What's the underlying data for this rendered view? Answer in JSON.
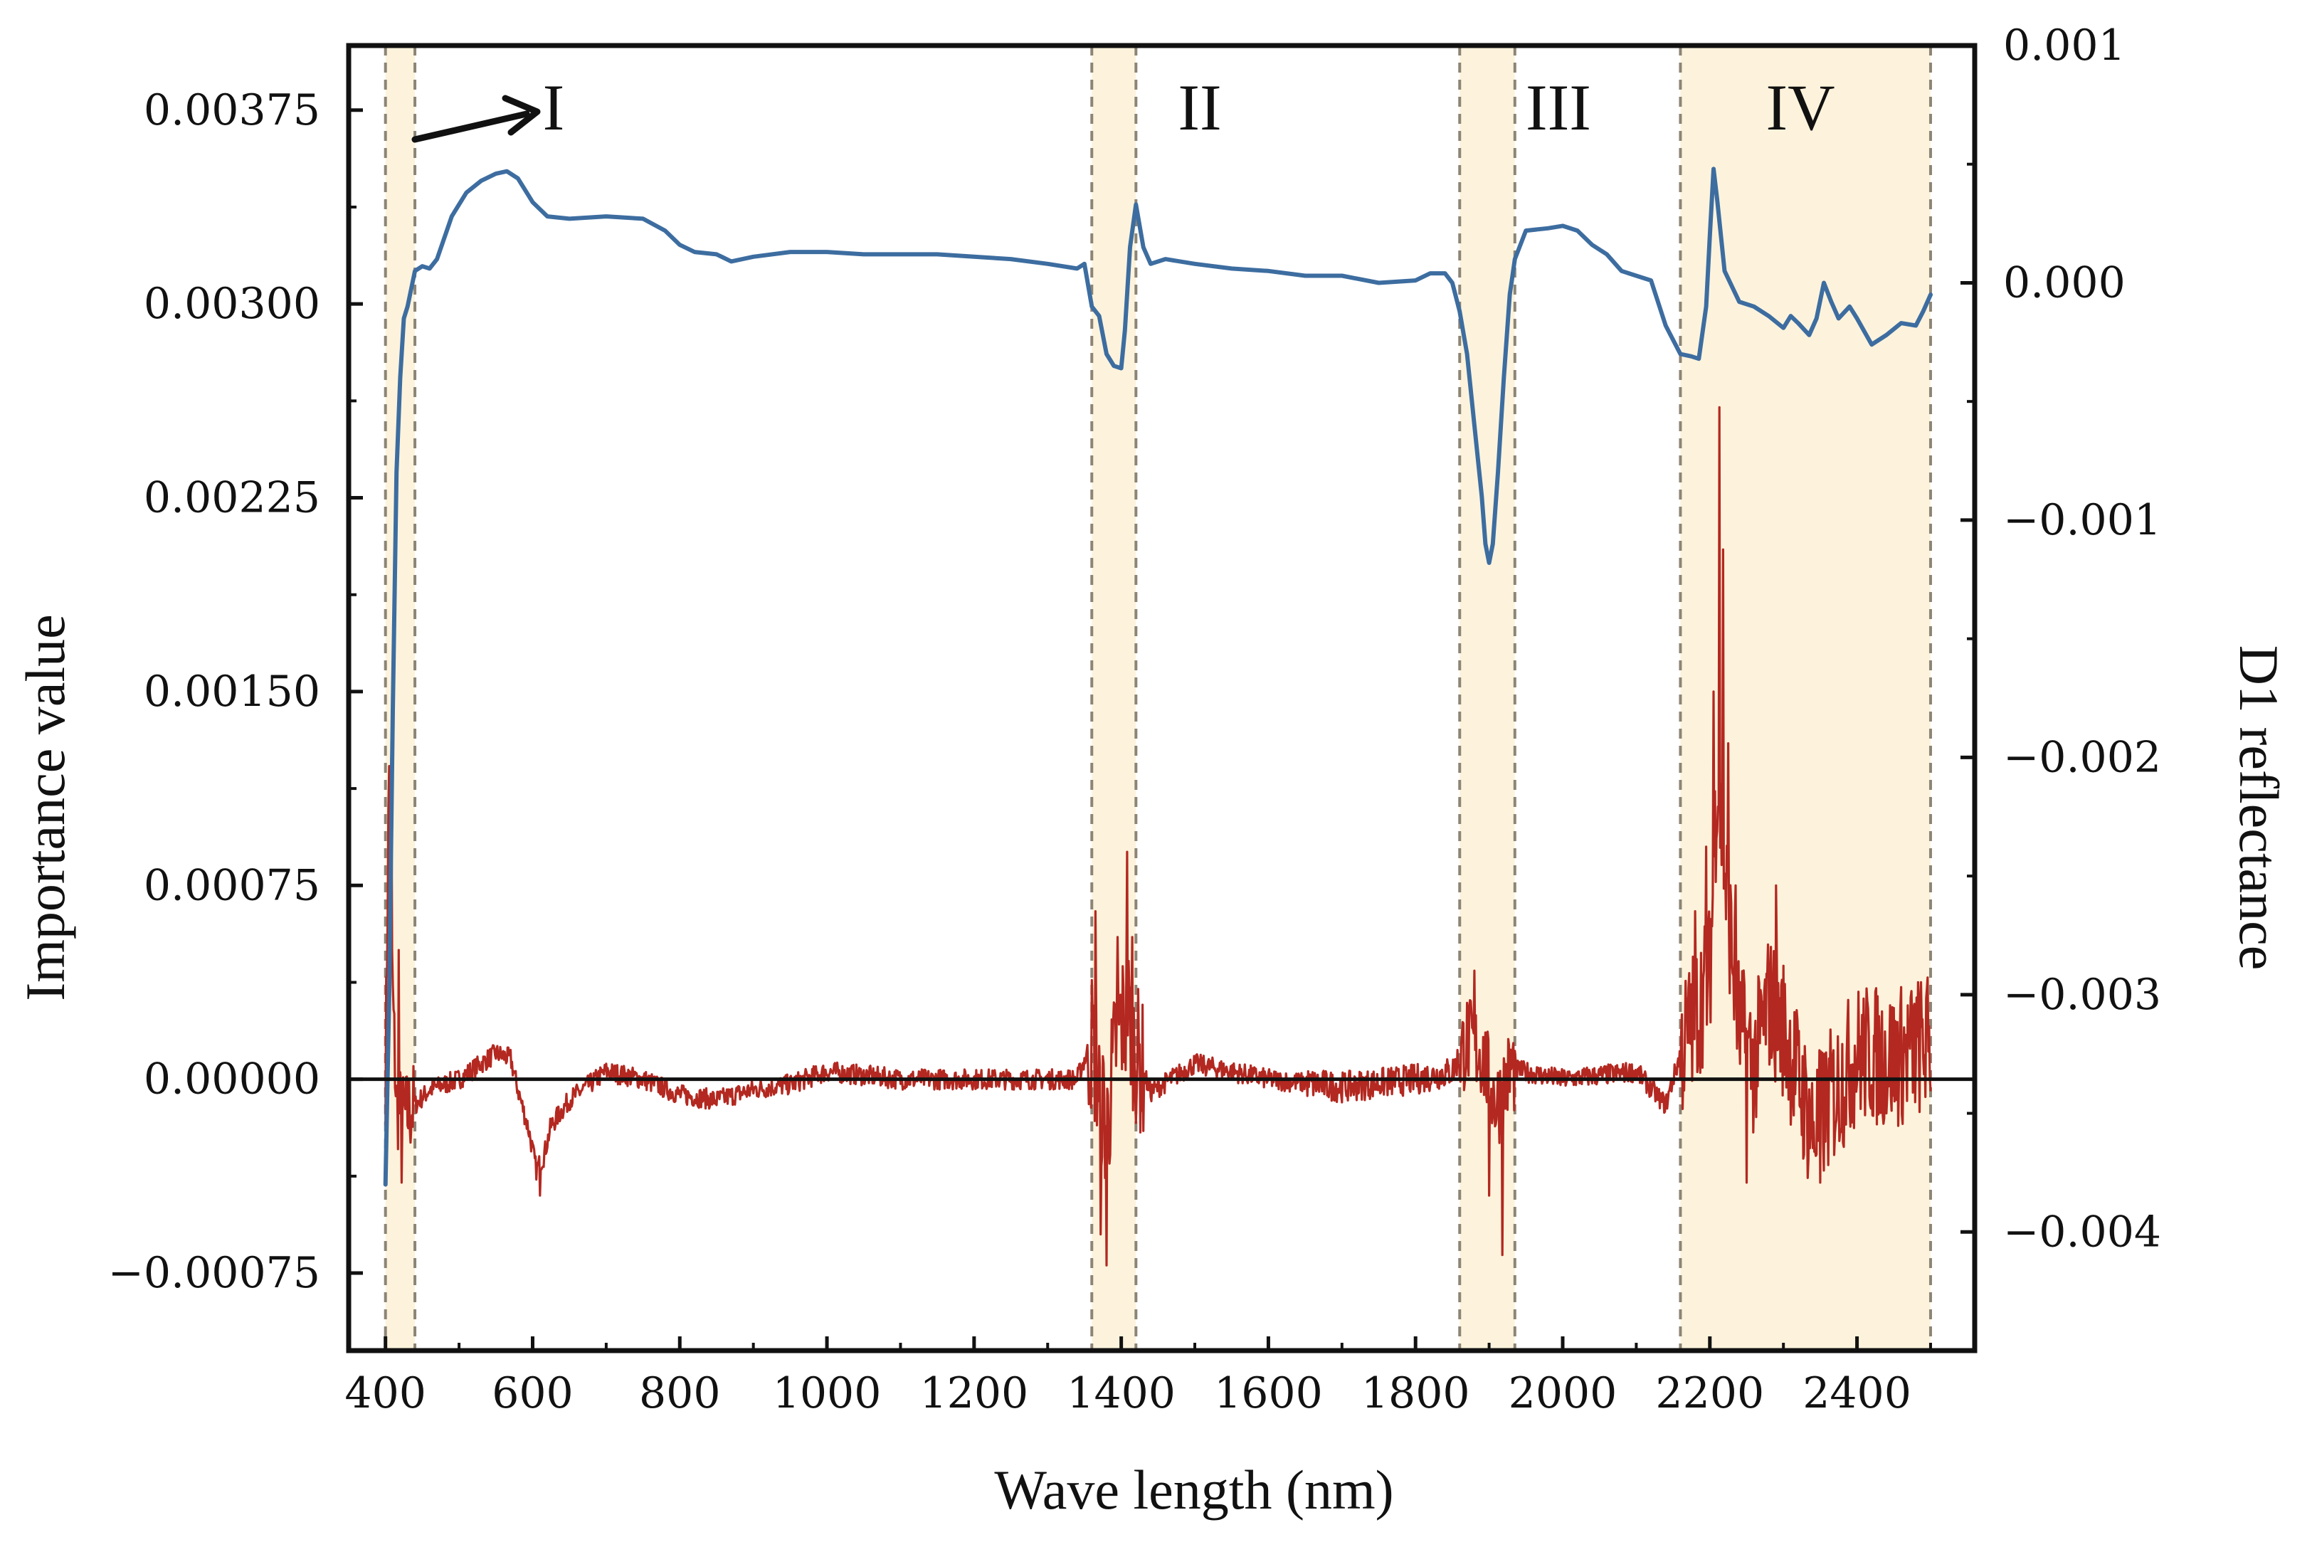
{
  "chart_data": {
    "type": "line",
    "title": "",
    "xlabel": "Wave length (nm)",
    "ylabel_left": "Importance value",
    "ylabel_right": "D1 reflectance",
    "xlim": [
      350,
      2560
    ],
    "ylim_left": [
      -0.00105,
      0.004
    ],
    "ylim_right": [
      -0.0045,
      0.001
    ],
    "x_ticks": [
      400,
      600,
      800,
      1000,
      1200,
      1400,
      1600,
      1800,
      2000,
      2200,
      2400
    ],
    "y_left_ticks": [
      -0.00075,
      0.0,
      0.00075,
      0.0015,
      0.00225,
      0.003,
      0.00375
    ],
    "y_left_tick_labels": [
      "−0.00075",
      "0.00000",
      "0.00075",
      "0.00150",
      "0.00225",
      "0.00300",
      "0.00375"
    ],
    "y_right_ticks": [
      0.001,
      0.0,
      -0.001,
      -0.002,
      -0.003,
      -0.004
    ],
    "y_right_tick_labels": [
      "0.001",
      "0.000",
      "−0.001",
      "−0.002",
      "−0.003",
      "−0.004"
    ],
    "regions": [
      {
        "label": "I",
        "start": 400,
        "end": 440
      },
      {
        "label": "II",
        "start": 1360,
        "end": 1420
      },
      {
        "label": "III",
        "start": 1860,
        "end": 1935
      },
      {
        "label": "IV",
        "start": 2160,
        "end": 2500
      }
    ],
    "series": [
      {
        "name": "D1 reflectance",
        "axis": "right",
        "color": "#3d6da0",
        "points": [
          [
            400,
            -0.0038
          ],
          [
            405,
            -0.003
          ],
          [
            410,
            -0.0018
          ],
          [
            415,
            -0.0008
          ],
          [
            420,
            -0.0004
          ],
          [
            425,
            -0.00015
          ],
          [
            430,
            -0.0001
          ],
          [
            440,
            5e-05
          ],
          [
            450,
            7e-05
          ],
          [
            460,
            6e-05
          ],
          [
            470,
            0.0001
          ],
          [
            490,
            0.00028
          ],
          [
            510,
            0.00038
          ],
          [
            530,
            0.00043
          ],
          [
            550,
            0.00046
          ],
          [
            565,
            0.00047
          ],
          [
            580,
            0.00044
          ],
          [
            600,
            0.00034
          ],
          [
            620,
            0.00028
          ],
          [
            650,
            0.00027
          ],
          [
            700,
            0.00028
          ],
          [
            750,
            0.00027
          ],
          [
            780,
            0.00022
          ],
          [
            800,
            0.00016
          ],
          [
            820,
            0.00013
          ],
          [
            850,
            0.00012
          ],
          [
            870,
            9e-05
          ],
          [
            900,
            0.00011
          ],
          [
            950,
            0.00013
          ],
          [
            1000,
            0.00013
          ],
          [
            1050,
            0.00012
          ],
          [
            1100,
            0.00012
          ],
          [
            1150,
            0.00012
          ],
          [
            1200,
            0.00011
          ],
          [
            1250,
            0.0001
          ],
          [
            1300,
            8e-05
          ],
          [
            1340,
            6e-05
          ],
          [
            1350,
            8e-05
          ],
          [
            1360,
            -0.0001
          ],
          [
            1370,
            -0.00014
          ],
          [
            1380,
            -0.0003
          ],
          [
            1390,
            -0.00035
          ],
          [
            1400,
            -0.00036
          ],
          [
            1405,
            -0.0002
          ],
          [
            1412,
            0.00015
          ],
          [
            1420,
            0.00033
          ],
          [
            1430,
            0.00015
          ],
          [
            1440,
            8e-05
          ],
          [
            1460,
            0.0001
          ],
          [
            1500,
            8e-05
          ],
          [
            1550,
            6e-05
          ],
          [
            1600,
            5e-05
          ],
          [
            1650,
            3e-05
          ],
          [
            1700,
            3e-05
          ],
          [
            1750,
            0.0
          ],
          [
            1800,
            1e-05
          ],
          [
            1820,
            4e-05
          ],
          [
            1840,
            4e-05
          ],
          [
            1850,
            0.0
          ],
          [
            1860,
            -0.00012
          ],
          [
            1870,
            -0.0003
          ],
          [
            1880,
            -0.0006
          ],
          [
            1890,
            -0.0009
          ],
          [
            1895,
            -0.0011
          ],
          [
            1900,
            -0.00118
          ],
          [
            1905,
            -0.0011
          ],
          [
            1912,
            -0.0008
          ],
          [
            1920,
            -0.0004
          ],
          [
            1928,
            -5e-05
          ],
          [
            1935,
            0.0001
          ],
          [
            1950,
            0.00022
          ],
          [
            1980,
            0.00023
          ],
          [
            2000,
            0.00024
          ],
          [
            2020,
            0.00022
          ],
          [
            2040,
            0.00016
          ],
          [
            2060,
            0.00012
          ],
          [
            2080,
            5e-05
          ],
          [
            2100,
            3e-05
          ],
          [
            2120,
            1e-05
          ],
          [
            2140,
            -0.00018
          ],
          [
            2160,
            -0.0003
          ],
          [
            2175,
            -0.00031
          ],
          [
            2185,
            -0.00032
          ],
          [
            2195,
            -0.0001
          ],
          [
            2200,
            0.0002
          ],
          [
            2205,
            0.00048
          ],
          [
            2210,
            0.00035
          ],
          [
            2220,
            5e-05
          ],
          [
            2240,
            -8e-05
          ],
          [
            2260,
            -0.0001
          ],
          [
            2280,
            -0.00014
          ],
          [
            2300,
            -0.00019
          ],
          [
            2310,
            -0.00014
          ],
          [
            2320,
            -0.00017
          ],
          [
            2335,
            -0.00022
          ],
          [
            2345,
            -0.00015
          ],
          [
            2355,
            0.0
          ],
          [
            2365,
            -8e-05
          ],
          [
            2375,
            -0.00015
          ],
          [
            2390,
            -0.0001
          ],
          [
            2400,
            -0.00015
          ],
          [
            2420,
            -0.00026
          ],
          [
            2440,
            -0.00022
          ],
          [
            2460,
            -0.00017
          ],
          [
            2480,
            -0.00018
          ],
          [
            2490,
            -0.00012
          ],
          [
            2500,
            -5e-05
          ]
        ]
      },
      {
        "name": "Importance value",
        "axis": "left",
        "color": "#b32820",
        "anchors": [
          [
            400,
            0.0
          ],
          [
            405,
            0.0012
          ],
          [
            410,
            0.0003
          ],
          [
            415,
            -0.0001
          ],
          [
            425,
            -0.00015
          ],
          [
            440,
            -0.0001
          ],
          [
            460,
            -4e-05
          ],
          [
            500,
            -0.0
          ],
          [
            530,
            6e-05
          ],
          [
            550,
            0.0001
          ],
          [
            570,
            8e-05
          ],
          [
            580,
            -4e-05
          ],
          [
            595,
            -0.0002
          ],
          [
            605,
            -0.00035
          ],
          [
            615,
            -0.0003
          ],
          [
            625,
            -0.00018
          ],
          [
            650,
            -8e-05
          ],
          [
            700,
            3e-05
          ],
          [
            750,
            0.0
          ],
          [
            800,
            -6e-05
          ],
          [
            850,
            -8e-05
          ],
          [
            900,
            -4e-05
          ],
          [
            950,
            -2e-05
          ],
          [
            1000,
            3e-05
          ],
          [
            1100,
            0.0
          ],
          [
            1200,
            0.0
          ],
          [
            1300,
            0.0
          ],
          [
            1340,
            0.0
          ],
          [
            1360,
            0.00015
          ],
          [
            1380,
            -0.0002
          ],
          [
            1395,
            0.0002
          ],
          [
            1410,
            0.00025
          ],
          [
            1420,
            0.0001
          ],
          [
            1440,
            -5e-05
          ],
          [
            1500,
            6e-05
          ],
          [
            1600,
            0.0
          ],
          [
            1700,
            -3e-05
          ],
          [
            1800,
            0.0
          ],
          [
            1850,
            3e-05
          ],
          [
            1870,
            0.00015
          ],
          [
            1890,
            0.0001
          ],
          [
            1910,
            -0.0001
          ],
          [
            1930,
            4e-05
          ],
          [
            2000,
            0.0
          ],
          [
            2100,
            3e-05
          ],
          [
            2140,
            -0.0001
          ],
          [
            2160,
            0.0001
          ],
          [
            2180,
            0.00025
          ],
          [
            2200,
            0.0004
          ],
          [
            2210,
            0.0012
          ],
          [
            2220,
            0.0008
          ],
          [
            2240,
            0.0002
          ],
          [
            2260,
            5e-05
          ],
          [
            2280,
            0.0003
          ],
          [
            2300,
            0.0002
          ],
          [
            2320,
            0.0
          ],
          [
            2340,
            -0.0002
          ],
          [
            2360,
            -0.0001
          ],
          [
            2400,
            0.0001
          ],
          [
            2450,
            8e-05
          ],
          [
            2480,
            0.00012
          ],
          [
            2500,
            0.00015
          ]
        ],
        "peaks": [
          [
            408,
            0.00125
          ],
          [
            418,
            0.0005
          ],
          [
            422,
            -0.0004
          ],
          [
            610,
            -0.00045
          ],
          [
            1365,
            0.00065
          ],
          [
            1372,
            -0.0006
          ],
          [
            1380,
            -0.00072
          ],
          [
            1395,
            0.00055
          ],
          [
            1408,
            0.00088
          ],
          [
            1415,
            0.00055
          ],
          [
            1880,
            0.00042
          ],
          [
            1900,
            -0.00045
          ],
          [
            1918,
            -0.00068
          ],
          [
            2180,
            0.00065
          ],
          [
            2195,
            0.0009
          ],
          [
            2205,
            0.0015
          ],
          [
            2213,
            0.0026
          ],
          [
            2218,
            0.00205
          ],
          [
            2225,
            0.0013
          ],
          [
            2235,
            0.00075
          ],
          [
            2250,
            -0.0004
          ],
          [
            2290,
            0.00075
          ],
          [
            2350,
            -0.0004
          ],
          [
            2495,
            0.00035
          ]
        ]
      }
    ]
  }
}
